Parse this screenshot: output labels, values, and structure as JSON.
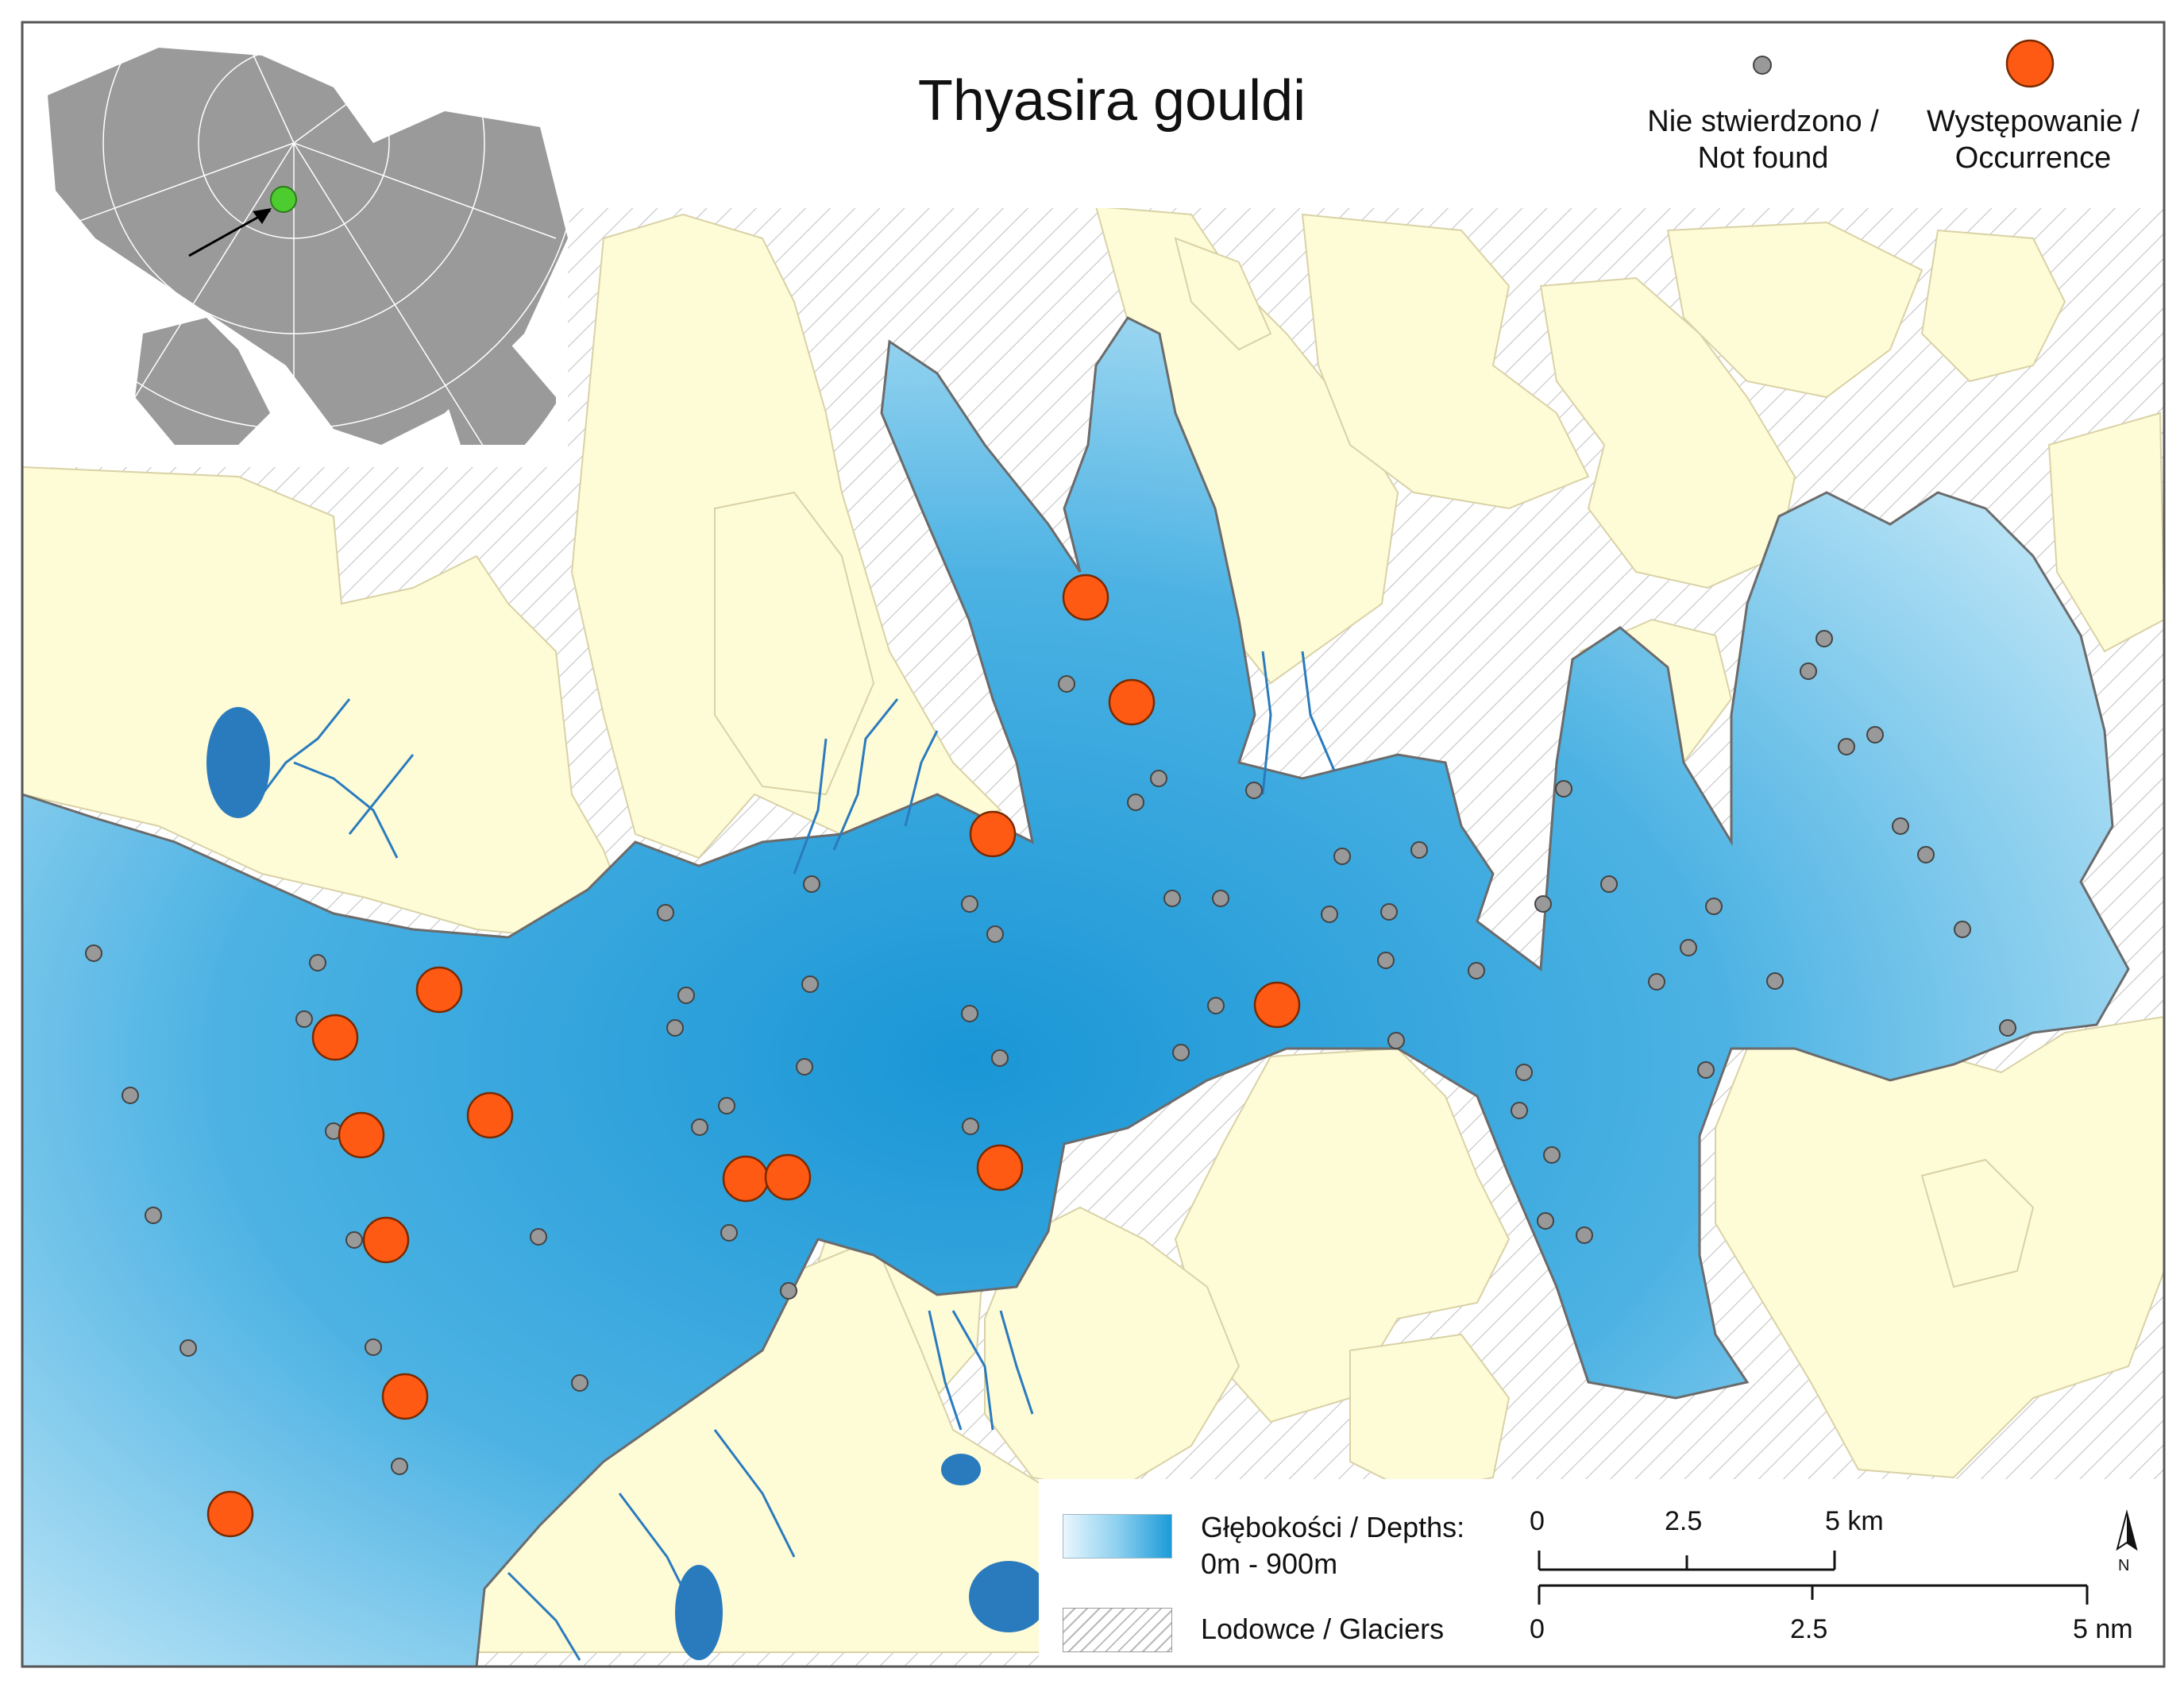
{
  "title": "Thyasira gouldi",
  "legend": {
    "not_found_label_line1": "Nie stwierdzono /",
    "not_found_label_line2": "Not found",
    "occurrence_label_line1": "Występowanie /",
    "occurrence_label_line2": "Occurrence",
    "depth_label_line1": "Głębokości / Depths:",
    "depth_label_line2": "0m - 900m",
    "glacier_label": "Lodowce / Glaciers"
  },
  "scale_bar": {
    "km_ticks": [
      "0",
      "2.5",
      "5 km"
    ],
    "nm_ticks": [
      "0",
      "2.5",
      "5 nm"
    ]
  },
  "north_arrow_label": "N",
  "colors": {
    "occurrence": "#ff5a14",
    "not_found": "#999999",
    "land": "#fefbd7",
    "water_deep": "#1a96d6",
    "water_shallow": "#d8f0fa",
    "river": "#2a7bbd",
    "inset_land": "#9a9a9a",
    "inset_marker": "#4ccc2e"
  }
}
